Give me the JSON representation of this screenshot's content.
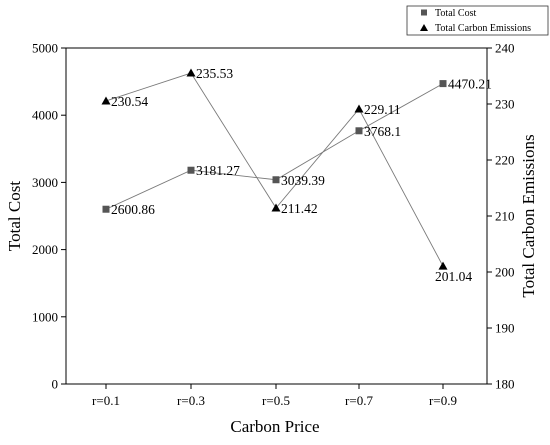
{
  "chart_data": {
    "type": "line",
    "categories": [
      "r=0.1",
      "r=0.3",
      "r=0.5",
      "r=0.7",
      "r=0.9"
    ],
    "xlabel": "Carbon Price",
    "ylabel_left": "Total Cost",
    "ylabel_right": "Total Carbon Emissions",
    "ylim_left": [
      0,
      5000
    ],
    "yticks_left": [
      "0",
      "1000",
      "2000",
      "3000",
      "4000",
      "5000"
    ],
    "ylim_right": [
      180,
      240
    ],
    "yticks_right": [
      "180",
      "190",
      "200",
      "210",
      "220",
      "230",
      "240"
    ],
    "grid": false,
    "legend_position": "top-right",
    "series": [
      {
        "name": "Total Cost",
        "axis": "left",
        "marker": "square",
        "color": "#555555",
        "values": [
          2600.86,
          3181.27,
          3039.39,
          3768.1,
          4470.21
        ],
        "labels": [
          "2600.86",
          "3181.27",
          "3039.39",
          "3768.1",
          "4470.21"
        ]
      },
      {
        "name": "Total Carbon Emissions",
        "axis": "right",
        "marker": "triangle",
        "color": "#000000",
        "values": [
          230.54,
          235.53,
          211.42,
          229.11,
          201.04
        ],
        "labels": [
          "230.54",
          "235.53",
          "211.42",
          "229.11",
          "201.04"
        ]
      }
    ]
  }
}
